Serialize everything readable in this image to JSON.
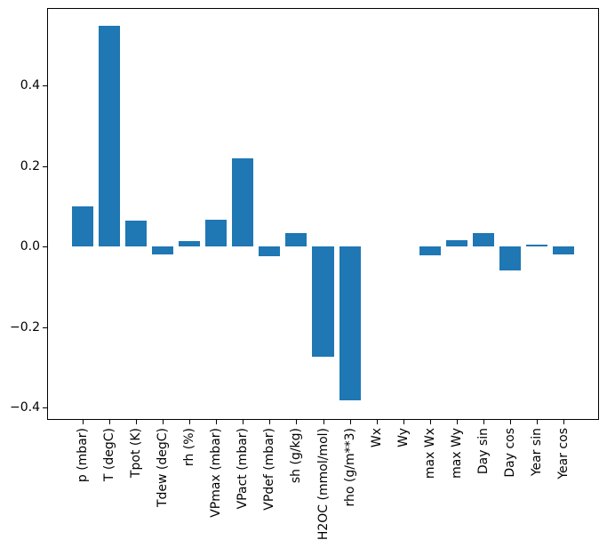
{
  "figure": {
    "background": "#ffffff",
    "title": ""
  },
  "chart_data": {
    "type": "bar",
    "title": "",
    "xlabel": "",
    "ylabel": "",
    "grid": false,
    "legend": null,
    "bar_color": "#1f77b4",
    "axis_color": "#000000",
    "categories": [
      "p (mbar)",
      "T (degC)",
      "Tpot (K)",
      "Tdew (degC)",
      "rh (%)",
      "VPmax (mbar)",
      "VPact (mbar)",
      "VPdef (mbar)",
      "sh (g/kg)",
      "H2OC (mmol/mol)",
      "rho (g/m**3)",
      "Wx",
      "Wy",
      "max Wx",
      "max Wy",
      "Day sin",
      "Day cos",
      "Year sin",
      "Year cos"
    ],
    "values": [
      0.1,
      0.548,
      0.064,
      -0.02,
      0.014,
      0.068,
      0.22,
      -0.023,
      0.035,
      -0.273,
      -0.381,
      0.0,
      0.0,
      -0.021,
      0.017,
      0.034,
      -0.058,
      0.005,
      -0.02
    ],
    "ylim": [
      -0.43,
      0.593
    ],
    "yticks": {
      "values": [
        0.4,
        0.2,
        0.0,
        -0.2,
        -0.4
      ],
      "labels": [
        "0.4",
        "0.2",
        "0.0",
        "−0.2",
        "−0.4"
      ]
    }
  }
}
